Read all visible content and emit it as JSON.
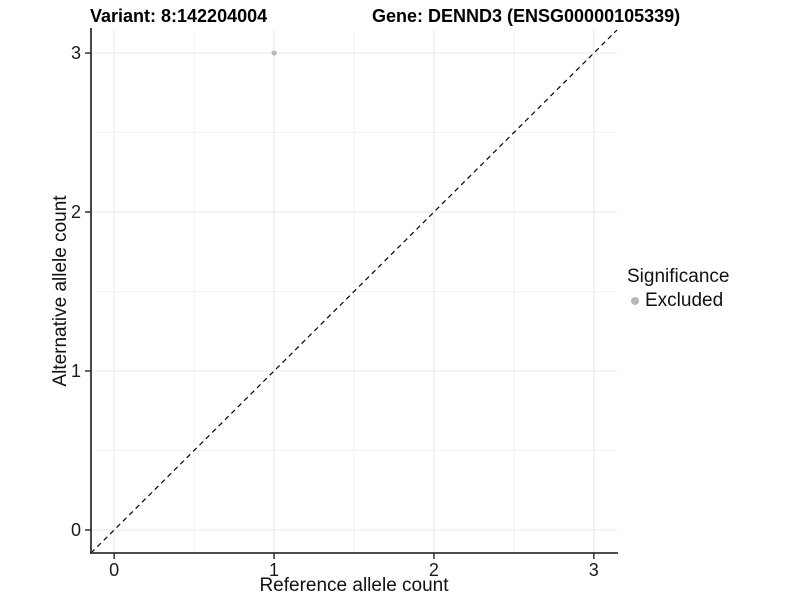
{
  "figure": {
    "title_left": "Variant: 8:142204004",
    "title_right": "Gene: DENND3 (ENSG00000105339)"
  },
  "chart_data": {
    "type": "scatter",
    "title_left": "Variant: 8:142204004",
    "title_right": "Gene: DENND3 (ENSG00000105339)",
    "xlabel": "Reference allele count",
    "ylabel": "Alternative allele count",
    "xlim": [
      -0.145,
      3.145
    ],
    "ylim": [
      -0.145,
      3.145
    ],
    "xticks": [
      0,
      1,
      2,
      3
    ],
    "yticks": [
      0,
      1,
      2,
      3
    ],
    "minor_xticks": [
      0.5,
      1.5,
      2.5
    ],
    "minor_yticks": [
      0.5,
      1.5,
      2.5
    ],
    "grid": true,
    "reference_line": {
      "type": "identity",
      "style": "dashed",
      "color": "#000000"
    },
    "series": [
      {
        "name": "Excluded",
        "color": "#b8b8b8",
        "points": [
          {
            "x": 1,
            "y": 3
          }
        ]
      }
    ],
    "legend": {
      "title": "Significance",
      "position": "right",
      "items": [
        {
          "label": "Excluded",
          "color": "#b8b8b8"
        }
      ]
    }
  },
  "colors": {
    "background": "#ffffff",
    "axis_line": "#333333",
    "tick_text": "#1a1a1a",
    "grid_major": "#e8e8e8",
    "grid_minor": "#f3f3f3",
    "point_excluded": "#b8b8b8"
  }
}
